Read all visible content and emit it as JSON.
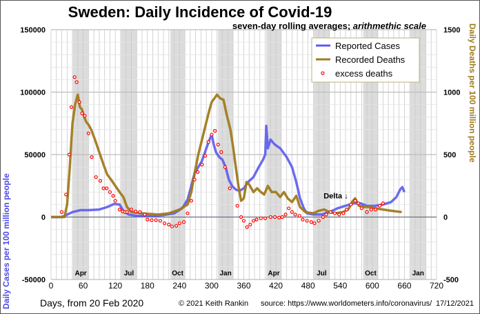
{
  "chart_data": {
    "type": "line",
    "title": "Sweden: Daily Incidence of Covid-19",
    "subtitle_bold": "seven-day rolling averages; ",
    "subtitle_italic": "arithmethic scale",
    "xlabel": "Days, from 20 Feb 2020",
    "ylabel_left": "Daily Cases per 100 million people",
    "ylabel_right": "Daily Deaths per 100 million people",
    "xlim": [
      0,
      720
    ],
    "ylim_left": [
      -50000,
      150000
    ],
    "ylim_right": [
      -500,
      1500
    ],
    "x_ticks": [
      "0",
      "60",
      "120",
      "180",
      "240",
      "300",
      "360",
      "420",
      "480",
      "540",
      "600",
      "660",
      "720"
    ],
    "x_tick_values": [
      0,
      60,
      120,
      180,
      240,
      300,
      360,
      420,
      480,
      540,
      600,
      660,
      720
    ],
    "y_ticks_left": [
      "150000",
      "100000",
      "50000",
      "0",
      "-50000"
    ],
    "y_tick_values_left": [
      150000,
      100000,
      50000,
      0,
      -50000
    ],
    "y_ticks_right": [
      "1500",
      "1000",
      "500",
      "0",
      "-500"
    ],
    "y_tick_values_right": [
      1500,
      1000,
      500,
      0,
      -500
    ],
    "month_bands": [
      {
        "label": "Apr",
        "start": 41,
        "end": 70
      },
      {
        "label": "Jul",
        "start": 131,
        "end": 160
      },
      {
        "label": "Oct",
        "start": 223,
        "end": 250
      },
      {
        "label": "Jan",
        "start": 312,
        "end": 340
      },
      {
        "label": "Apr",
        "start": 402,
        "end": 430
      },
      {
        "label": "Jul",
        "start": 491,
        "end": 520
      },
      {
        "label": "Oct",
        "start": 583,
        "end": 611
      },
      {
        "label": "Jan",
        "start": 671,
        "end": 700
      }
    ],
    "grid": true,
    "legend_position": "top-right",
    "series": [
      {
        "name": "Reported Cases",
        "axis": "left",
        "color": "#5b5bf0",
        "points": [
          [
            0,
            0
          ],
          [
            20,
            0
          ],
          [
            28,
            1500
          ],
          [
            40,
            4000
          ],
          [
            55,
            5500
          ],
          [
            70,
            5500
          ],
          [
            90,
            6000
          ],
          [
            105,
            8000
          ],
          [
            118,
            10500
          ],
          [
            128,
            10000
          ],
          [
            135,
            5000
          ],
          [
            145,
            2000
          ],
          [
            160,
            1000
          ],
          [
            190,
            1000
          ],
          [
            210,
            1500
          ],
          [
            230,
            3000
          ],
          [
            245,
            7000
          ],
          [
            255,
            14000
          ],
          [
            262,
            25000
          ],
          [
            268,
            35000
          ],
          [
            275,
            40000
          ],
          [
            282,
            45000
          ],
          [
            290,
            55000
          ],
          [
            296,
            62000
          ],
          [
            300,
            66000
          ],
          [
            304,
            58000
          ],
          [
            308,
            52000
          ],
          [
            314,
            48000
          ],
          [
            320,
            46000
          ],
          [
            326,
            40000
          ],
          [
            332,
            30000
          ],
          [
            338,
            25000
          ],
          [
            345,
            22000
          ],
          [
            352,
            21000
          ],
          [
            360,
            23000
          ],
          [
            368,
            28000
          ],
          [
            378,
            32000
          ],
          [
            388,
            40000
          ],
          [
            396,
            46000
          ],
          [
            400,
            50000
          ],
          [
            402,
            73000
          ],
          [
            405,
            55000
          ],
          [
            410,
            62000
          ],
          [
            418,
            58000
          ],
          [
            428,
            55000
          ],
          [
            440,
            48000
          ],
          [
            450,
            40000
          ],
          [
            458,
            28000
          ],
          [
            465,
            15000
          ],
          [
            472,
            7000
          ],
          [
            478,
            3000
          ],
          [
            490,
            2000
          ],
          [
            505,
            2000
          ],
          [
            520,
            4000
          ],
          [
            535,
            7000
          ],
          [
            550,
            9000
          ],
          [
            565,
            11000
          ],
          [
            578,
            11000
          ],
          [
            590,
            9000
          ],
          [
            605,
            9000
          ],
          [
            620,
            10000
          ],
          [
            635,
            12000
          ],
          [
            645,
            16000
          ],
          [
            652,
            22000
          ],
          [
            656,
            24000
          ],
          [
            660,
            20000
          ]
        ]
      },
      {
        "name": "Recorded Deaths",
        "axis": "right",
        "color": "#a07a1e",
        "points": [
          [
            0,
            0
          ],
          [
            25,
            0
          ],
          [
            30,
            100
          ],
          [
            35,
            400
          ],
          [
            40,
            750
          ],
          [
            45,
            900
          ],
          [
            50,
            980
          ],
          [
            54,
            880
          ],
          [
            58,
            860
          ],
          [
            62,
            800
          ],
          [
            66,
            760
          ],
          [
            70,
            740
          ],
          [
            75,
            700
          ],
          [
            82,
            620
          ],
          [
            90,
            520
          ],
          [
            98,
            420
          ],
          [
            105,
            340
          ],
          [
            112,
            300
          ],
          [
            120,
            250
          ],
          [
            128,
            200
          ],
          [
            135,
            160
          ],
          [
            142,
            80
          ],
          [
            150,
            40
          ],
          [
            170,
            30
          ],
          [
            200,
            20
          ],
          [
            220,
            30
          ],
          [
            240,
            60
          ],
          [
            255,
            100
          ],
          [
            262,
            200
          ],
          [
            268,
            350
          ],
          [
            275,
            500
          ],
          [
            282,
            620
          ],
          [
            290,
            760
          ],
          [
            296,
            860
          ],
          [
            300,
            920
          ],
          [
            305,
            950
          ],
          [
            310,
            980
          ],
          [
            316,
            950
          ],
          [
            322,
            940
          ],
          [
            328,
            820
          ],
          [
            335,
            700
          ],
          [
            340,
            560
          ],
          [
            345,
            400
          ],
          [
            350,
            250
          ],
          [
            355,
            130
          ],
          [
            360,
            150
          ],
          [
            365,
            280
          ],
          [
            370,
            260
          ],
          [
            378,
            200
          ],
          [
            385,
            230
          ],
          [
            392,
            200
          ],
          [
            398,
            180
          ],
          [
            405,
            250
          ],
          [
            412,
            200
          ],
          [
            420,
            200
          ],
          [
            428,
            160
          ],
          [
            435,
            200
          ],
          [
            442,
            150
          ],
          [
            450,
            120
          ],
          [
            458,
            170
          ],
          [
            465,
            80
          ],
          [
            475,
            40
          ],
          [
            490,
            30
          ],
          [
            500,
            50
          ],
          [
            510,
            60
          ],
          [
            520,
            40
          ],
          [
            530,
            30
          ],
          [
            545,
            40
          ],
          [
            555,
            60
          ],
          [
            562,
            120
          ],
          [
            568,
            150
          ],
          [
            575,
            90
          ],
          [
            585,
            80
          ],
          [
            595,
            80
          ],
          [
            605,
            70
          ],
          [
            620,
            60
          ],
          [
            635,
            50
          ],
          [
            655,
            40
          ]
        ]
      },
      {
        "name": "excess deaths",
        "axis": "right",
        "color": "#ff0000",
        "type": "scatter",
        "points": [
          [
            20,
            40
          ],
          [
            28,
            180
          ],
          [
            34,
            500
          ],
          [
            38,
            880
          ],
          [
            44,
            1120
          ],
          [
            48,
            1080
          ],
          [
            53,
            920
          ],
          [
            58,
            830
          ],
          [
            63,
            810
          ],
          [
            70,
            670
          ],
          [
            76,
            480
          ],
          [
            84,
            320
          ],
          [
            92,
            290
          ],
          [
            98,
            230
          ],
          [
            104,
            230
          ],
          [
            110,
            200
          ],
          [
            116,
            170
          ],
          [
            120,
            130
          ],
          [
            128,
            60
          ],
          [
            134,
            45
          ],
          [
            138,
            40
          ],
          [
            142,
            40
          ],
          [
            150,
            60
          ],
          [
            158,
            45
          ],
          [
            166,
            40
          ],
          [
            175,
            20
          ],
          [
            180,
            -20
          ],
          [
            188,
            -25
          ],
          [
            196,
            -25
          ],
          [
            204,
            -30
          ],
          [
            212,
            -50
          ],
          [
            220,
            -60
          ],
          [
            226,
            -75
          ],
          [
            234,
            -70
          ],
          [
            240,
            -50
          ],
          [
            248,
            -40
          ],
          [
            255,
            30
          ],
          [
            262,
            130
          ],
          [
            268,
            300
          ],
          [
            274,
            360
          ],
          [
            282,
            420
          ],
          [
            288,
            490
          ],
          [
            294,
            600
          ],
          [
            300,
            660
          ],
          [
            306,
            690
          ],
          [
            312,
            580
          ],
          [
            318,
            520
          ],
          [
            325,
            400
          ],
          [
            334,
            230
          ],
          [
            348,
            90
          ],
          [
            355,
            0
          ],
          [
            360,
            -30
          ],
          [
            366,
            -80
          ],
          [
            372,
            -60
          ],
          [
            378,
            -30
          ],
          [
            384,
            -20
          ],
          [
            392,
            -10
          ],
          [
            400,
            -10
          ],
          [
            410,
            0
          ],
          [
            418,
            0
          ],
          [
            426,
            -5
          ],
          [
            432,
            0
          ],
          [
            438,
            20
          ],
          [
            444,
            70
          ],
          [
            450,
            40
          ],
          [
            456,
            20
          ],
          [
            464,
            10
          ],
          [
            470,
            -20
          ],
          [
            478,
            -30
          ],
          [
            486,
            -40
          ],
          [
            492,
            -50
          ],
          [
            500,
            -30
          ],
          [
            508,
            0
          ],
          [
            514,
            20
          ],
          [
            522,
            40
          ],
          [
            530,
            30
          ],
          [
            538,
            20
          ],
          [
            546,
            30
          ],
          [
            552,
            60
          ],
          [
            560,
            100
          ],
          [
            568,
            130
          ],
          [
            574,
            110
          ],
          [
            580,
            70
          ],
          [
            590,
            40
          ],
          [
            598,
            60
          ],
          [
            606,
            60
          ],
          [
            614,
            90
          ],
          [
            620,
            110
          ]
        ]
      }
    ],
    "legend": [
      {
        "label": "Reported Cases",
        "style": "line",
        "color": "#5b5bf0"
      },
      {
        "label": "Recorded Deaths",
        "style": "line",
        "color": "#a07a1e"
      },
      {
        "label": "excess deaths",
        "style": "dot",
        "color": "#ff0000"
      }
    ],
    "annotations": [
      {
        "text": "Delta ↓",
        "x": 540,
        "y_left": 17000
      }
    ]
  },
  "footer": {
    "copyright": "© 2021  Keith Rankin",
    "source": "source:  https://www.worldometers.info/coronavirus/",
    "date": "17/12/2021"
  }
}
